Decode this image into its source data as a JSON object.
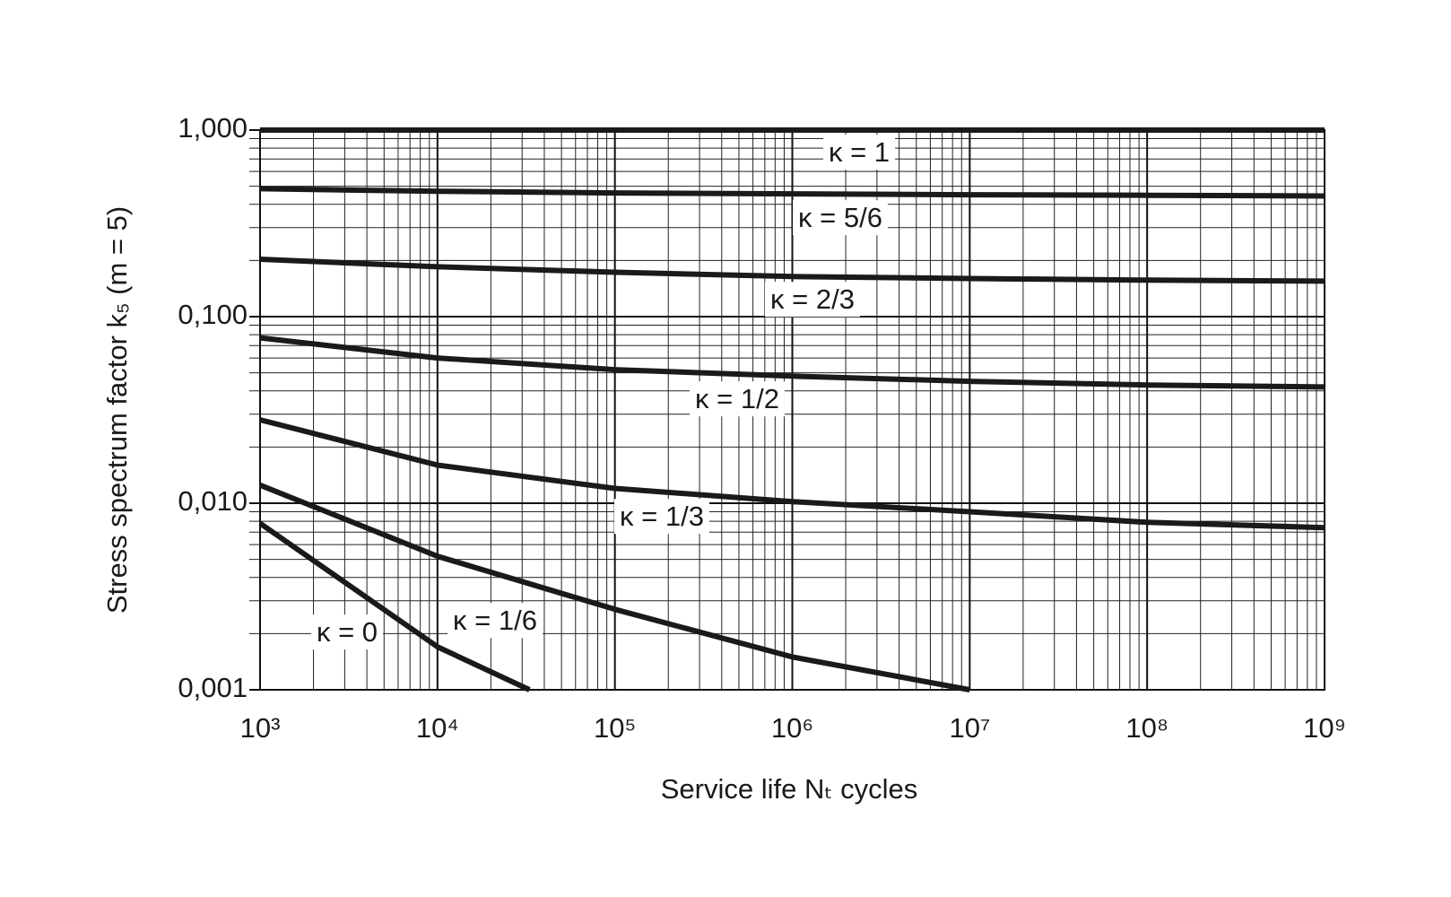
{
  "chart_data": {
    "type": "line",
    "x_label": "Service life Nₜ cycles",
    "y_label": "Stress spectrum factor k₅ (m = 5)",
    "log_x": true,
    "log_y": true,
    "grid": true,
    "minor_grid": true,
    "color": "#1a1a1a",
    "xlim": [
      1000,
      1000000000
    ],
    "ylim": [
      0.001,
      1
    ],
    "xticks": [
      {
        "value": 1000,
        "label": "10³"
      },
      {
        "value": 10000,
        "label": "10⁴"
      },
      {
        "value": 100000,
        "label": "10⁵"
      },
      {
        "value": 1000000,
        "label": "10⁶"
      },
      {
        "value": 10000000,
        "label": "10⁷"
      },
      {
        "value": 100000000,
        "label": "10⁸"
      },
      {
        "value": 1000000000,
        "label": "10⁹"
      }
    ],
    "yticks": [
      {
        "value": 0.001,
        "label": "0,001"
      },
      {
        "value": 0.01,
        "label": "0,010"
      },
      {
        "value": 0.1,
        "label": "0,100"
      },
      {
        "value": 1,
        "label": "1,000"
      }
    ],
    "series": [
      {
        "name": "κ = 1",
        "x": [
          1000,
          1000000000
        ],
        "values": [
          1,
          1
        ]
      },
      {
        "name": "κ = 5/6",
        "x": [
          1000,
          10000,
          100000,
          1000000,
          10000000,
          100000000,
          1000000000
        ],
        "values": [
          0.485,
          0.47,
          0.46,
          0.455,
          0.45,
          0.447,
          0.443
        ]
      },
      {
        "name": "κ = 2/3",
        "x": [
          1000,
          10000,
          100000,
          1000000,
          10000000,
          100000000,
          1000000000
        ],
        "values": [
          0.203,
          0.185,
          0.173,
          0.164,
          0.16,
          0.157,
          0.155
        ]
      },
      {
        "name": "κ = 1/2",
        "x": [
          1000,
          10000,
          100000,
          1000000,
          10000000,
          100000000,
          1000000000
        ],
        "values": [
          0.077,
          0.06,
          0.052,
          0.048,
          0.045,
          0.043,
          0.042
        ]
      },
      {
        "name": "κ = 1/3",
        "x": [
          1000,
          10000,
          100000,
          1000000,
          10000000,
          100000000,
          1000000000
        ],
        "values": [
          0.028,
          0.016,
          0.012,
          0.0102,
          0.009,
          0.0079,
          0.0074
        ]
      },
      {
        "name": "κ = 1/6",
        "x": [
          1000,
          10000,
          100000,
          1000000,
          10000000
        ],
        "values": [
          0.0125,
          0.0052,
          0.0027,
          0.0015,
          0.001
        ]
      },
      {
        "name": "κ = 0",
        "x": [
          1000,
          10000,
          33000
        ],
        "values": [
          0.0078,
          0.0017,
          0.001
        ]
      }
    ]
  }
}
